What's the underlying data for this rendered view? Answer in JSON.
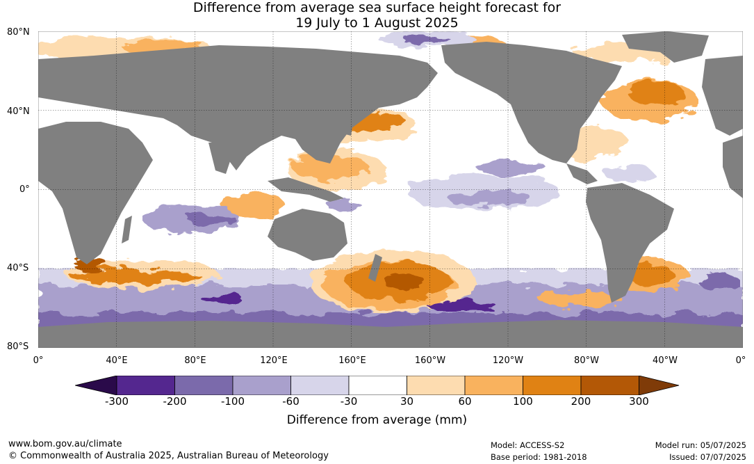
{
  "title_line1": "Difference from average sea surface height forecast for",
  "title_line2": "19 July to 1 August 2025",
  "lat_labels": [
    "80°N",
    "40°N",
    "0°",
    "40°S",
    "80°S"
  ],
  "lon_labels": [
    "0°",
    "40°E",
    "80°E",
    "120°E",
    "160°E",
    "160°W",
    "120°W",
    "80°W",
    "40°W",
    "0°"
  ],
  "colorbar": {
    "title": "Difference from average (mm)",
    "tick_labels": [
      "-300",
      "-200",
      "-100",
      "-60",
      "-30",
      "30",
      "60",
      "100",
      "200",
      "300"
    ],
    "colors": {
      "lt_-300": "#2a0a4a",
      "-300_-200": "#54278f",
      "-200_-100": "#7b6aab",
      "-100_-60": "#a9a0cc",
      "-60_-30": "#d7d5ea",
      "-30_30": "#ffffff",
      "30_60": "#fddcb0",
      "60_100": "#f9b25e",
      "100_200": "#e08214",
      "200_300": "#b35806",
      "gt_300": "#7f3b08"
    }
  },
  "land_color": "#808080",
  "footer": {
    "url": "www.bom.gov.au/climate",
    "copyright": "© Commonwealth of Australia 2025, Australian Bureau of Meteorology",
    "model": "Model: ACCESS-S2",
    "base_period": "Base period: 1981-2018",
    "model_run": "Model run: 05/07/2025",
    "issued": "Issued: 07/07/2025"
  }
}
